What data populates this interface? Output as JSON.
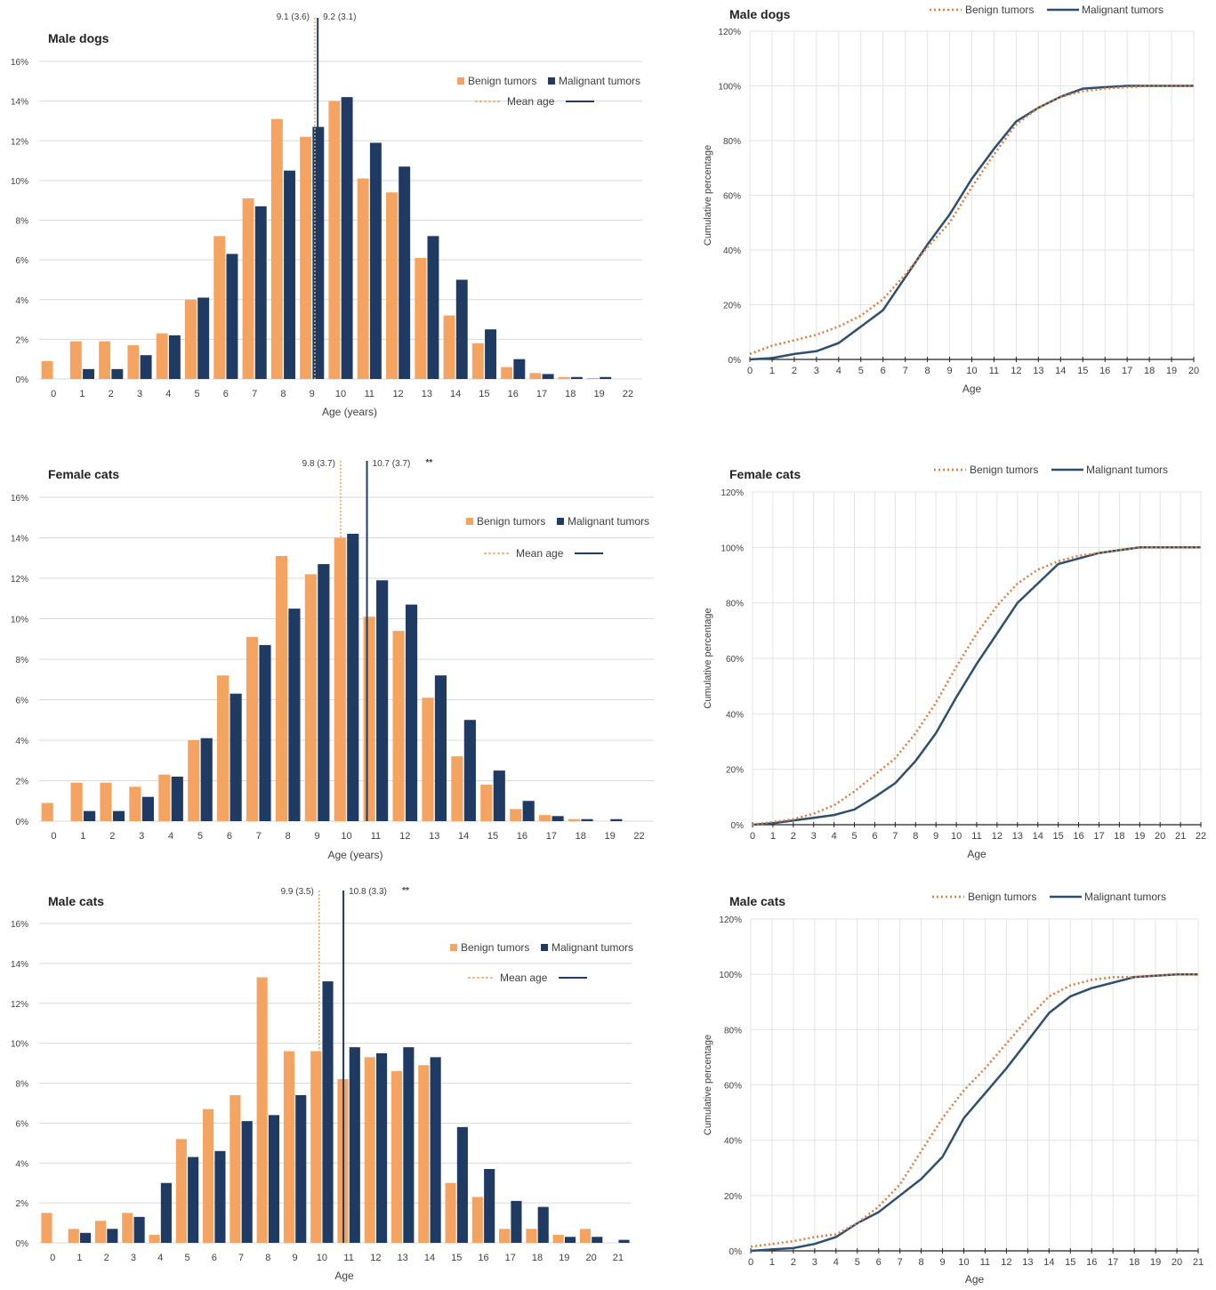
{
  "colors": {
    "benign": "#F4A460",
    "malignant": "#1F3A63",
    "cum_malignant": "#2E4F6E",
    "cum_benign": "#E07B39",
    "grid": "#D9D9D9",
    "text": "#404040"
  },
  "chart_data": [
    {
      "type": "bar",
      "title": "Male dogs",
      "xlabel": "Age (years)",
      "ylabel": "",
      "ylim": [
        0,
        16
      ],
      "y_ticks": [
        "0%",
        "2%",
        "4%",
        "6%",
        "8%",
        "10%",
        "12%",
        "14%",
        "16%"
      ],
      "categories": [
        "0",
        "1",
        "2",
        "3",
        "4",
        "5",
        "6",
        "7",
        "8",
        "9",
        "10",
        "11",
        "12",
        "13",
        "14",
        "15",
        "16",
        "17",
        "18",
        "19",
        "22"
      ],
      "series": [
        {
          "name": "Benign tumors",
          "values": [
            0.9,
            1.9,
            1.9,
            1.7,
            2.3,
            4.0,
            7.2,
            9.1,
            13.1,
            12.2,
            14.0,
            10.1,
            9.4,
            6.1,
            3.2,
            1.8,
            0.6,
            0.3,
            0.1,
            0.05,
            0.0
          ]
        },
        {
          "name": "Malignant tumors",
          "values": [
            0,
            0.5,
            0.5,
            1.2,
            2.2,
            4.1,
            6.3,
            8.7,
            10.5,
            12.7,
            14.2,
            11.9,
            10.7,
            7.2,
            5.0,
            2.5,
            1.0,
            0.25,
            0.1,
            0.1,
            0.0
          ]
        }
      ],
      "legend": {
        "benign": "Benign tumors",
        "malignant": "Malignant tumors",
        "mean": "Mean age"
      },
      "legend_position": "top-right",
      "mean_lines": [
        {
          "label": "9.1 (3.6)",
          "value": 9.1,
          "style": "dotted"
        },
        {
          "label": "9.2 (3.1)",
          "value": 9.2,
          "style": "solid"
        }
      ],
      "mean_suffix": ""
    },
    {
      "type": "bar",
      "title": "Female cats",
      "xlabel": "Age (years)",
      "ylabel": "",
      "ylim": [
        0,
        16
      ],
      "y_ticks": [
        "0%",
        "2%",
        "4%",
        "6%",
        "8%",
        "10%",
        "12%",
        "14%",
        "16%"
      ],
      "categories": [
        "0",
        "1",
        "2",
        "3",
        "4",
        "5",
        "6",
        "7",
        "8",
        "9",
        "10",
        "11",
        "12",
        "13",
        "14",
        "15",
        "16",
        "17",
        "18",
        "19",
        "22"
      ],
      "series": [
        {
          "name": "Benign tumors",
          "values": [
            0.9,
            1.9,
            1.9,
            1.7,
            2.3,
            4.0,
            7.2,
            9.1,
            13.1,
            12.2,
            14.0,
            10.1,
            9.4,
            6.1,
            3.2,
            1.8,
            0.6,
            0.3,
            0.1,
            0.0,
            0.0
          ]
        },
        {
          "name": "Malignant tumors",
          "values": [
            0,
            0.5,
            0.5,
            1.2,
            2.2,
            4.1,
            6.3,
            8.7,
            10.5,
            12.7,
            14.2,
            11.9,
            10.7,
            7.2,
            5.0,
            2.5,
            1.0,
            0.25,
            0.1,
            0.1,
            0.0
          ]
        }
      ],
      "legend": {
        "benign": "Benign tumors",
        "malignant": "Malignant tumors",
        "mean": "Mean age"
      },
      "legend_position": "top-right",
      "mean_lines": [
        {
          "label": "9.8 (3.7)",
          "value": 9.8,
          "style": "dotted"
        },
        {
          "label": "10.7 (3.7)",
          "value": 10.7,
          "style": "solid"
        }
      ],
      "mean_suffix": "**"
    },
    {
      "type": "bar",
      "title": "Male cats",
      "xlabel": "Age",
      "ylabel": "",
      "ylim": [
        0,
        16
      ],
      "y_ticks": [
        "0%",
        "2%",
        "4%",
        "6%",
        "8%",
        "10%",
        "12%",
        "14%",
        "16%"
      ],
      "categories": [
        "0",
        "1",
        "2",
        "3",
        "4",
        "5",
        "6",
        "7",
        "8",
        "9",
        "10",
        "11",
        "12",
        "13",
        "14",
        "15",
        "16",
        "17",
        "18",
        "19",
        "20",
        "21"
      ],
      "series": [
        {
          "name": "Benign tumors",
          "values": [
            1.5,
            0.7,
            1.1,
            1.5,
            0.4,
            5.2,
            6.7,
            7.4,
            13.3,
            9.6,
            9.6,
            8.2,
            9.3,
            8.6,
            8.9,
            3.0,
            2.3,
            0.7,
            0.7,
            0.4,
            0.7,
            0.0
          ]
        },
        {
          "name": "Malignant tumors",
          "values": [
            0,
            0.5,
            0.7,
            1.3,
            3.0,
            4.3,
            4.6,
            6.1,
            6.4,
            7.4,
            13.1,
            9.8,
            9.5,
            9.8,
            9.3,
            5.8,
            3.7,
            2.1,
            1.8,
            0.3,
            0.3,
            0.15
          ]
        }
      ],
      "legend": {
        "benign": "Benign tumors",
        "malignant": "Malignant tumors",
        "mean": "Mean age"
      },
      "legend_position": "top-right",
      "mean_lines": [
        {
          "label": "9.9 (3.5)",
          "value": 9.9,
          "style": "dotted"
        },
        {
          "label": "10.8 (3.3)",
          "value": 10.8,
          "style": "solid"
        }
      ],
      "mean_suffix": "**"
    },
    {
      "type": "line",
      "title": "Male dogs",
      "xlabel": "Age",
      "ylabel": "Cumulative percentage",
      "ylim": [
        0,
        120
      ],
      "y_ticks": [
        "0%",
        "20%",
        "40%",
        "60%",
        "80%",
        "100%",
        "120%"
      ],
      "x": [
        0,
        1,
        2,
        3,
        4,
        5,
        6,
        7,
        8,
        9,
        10,
        11,
        12,
        13,
        14,
        15,
        16,
        17,
        18,
        19,
        20
      ],
      "series": [
        {
          "name": "Benign tumors",
          "values": [
            2,
            5,
            7,
            9,
            12,
            16,
            22,
            31,
            41,
            50,
            63,
            75,
            86,
            92,
            96,
            98,
            99,
            99.5,
            100,
            100,
            100
          ]
        },
        {
          "name": "Malignant tumors",
          "values": [
            0,
            0.5,
            2,
            3,
            6,
            12,
            18,
            30,
            42,
            53,
            66,
            77,
            87,
            92,
            96,
            99,
            99.5,
            100,
            100,
            100,
            100
          ]
        }
      ],
      "legend_position": "top"
    },
    {
      "type": "line",
      "title": "Female cats",
      "xlabel": "Age",
      "ylabel": "Cumulative percentage",
      "ylim": [
        0,
        120
      ],
      "y_ticks": [
        "0%",
        "20%",
        "40%",
        "60%",
        "80%",
        "100%",
        "120%"
      ],
      "x": [
        0,
        1,
        2,
        3,
        4,
        5,
        6,
        7,
        8,
        9,
        10,
        11,
        12,
        13,
        14,
        15,
        16,
        17,
        18,
        19,
        20,
        21,
        22
      ],
      "series": [
        {
          "name": "Benign tumors",
          "values": [
            0,
            1,
            2,
            4,
            7,
            12,
            18,
            24,
            33,
            44,
            57,
            69,
            79,
            87,
            92,
            95,
            97,
            98,
            99,
            100,
            100,
            100,
            100
          ]
        },
        {
          "name": "Malignant tumors",
          "values": [
            0,
            0.5,
            1.5,
            2.5,
            3.5,
            5.5,
            10,
            15,
            23,
            33,
            46,
            58,
            69,
            80,
            87,
            94,
            96,
            98,
            99,
            100,
            100,
            100,
            100
          ]
        }
      ],
      "legend_position": "top"
    },
    {
      "type": "line",
      "title": "Male cats",
      "xlabel": "Age",
      "ylabel": "Cumulative percentage",
      "ylim": [
        0,
        120
      ],
      "y_ticks": [
        "0%",
        "20%",
        "40%",
        "60%",
        "80%",
        "100%",
        "120%"
      ],
      "x": [
        0,
        1,
        2,
        3,
        4,
        5,
        6,
        7,
        8,
        9,
        10,
        11,
        12,
        13,
        14,
        15,
        16,
        17,
        18,
        19,
        20,
        21
      ],
      "series": [
        {
          "name": "Benign tumors",
          "values": [
            1.5,
            2.5,
            3.5,
            5,
            6,
            10,
            16,
            24,
            36,
            48,
            58,
            66,
            75,
            84,
            92,
            96,
            98,
            99,
            99,
            99.5,
            100,
            100
          ]
        },
        {
          "name": "Malignant tumors",
          "values": [
            0,
            0.5,
            1,
            2.5,
            5,
            10,
            14,
            20,
            26,
            34,
            48,
            57,
            66,
            76,
            86,
            92,
            95,
            97,
            99,
            99.5,
            100,
            100
          ]
        }
      ],
      "legend_position": "top"
    }
  ]
}
